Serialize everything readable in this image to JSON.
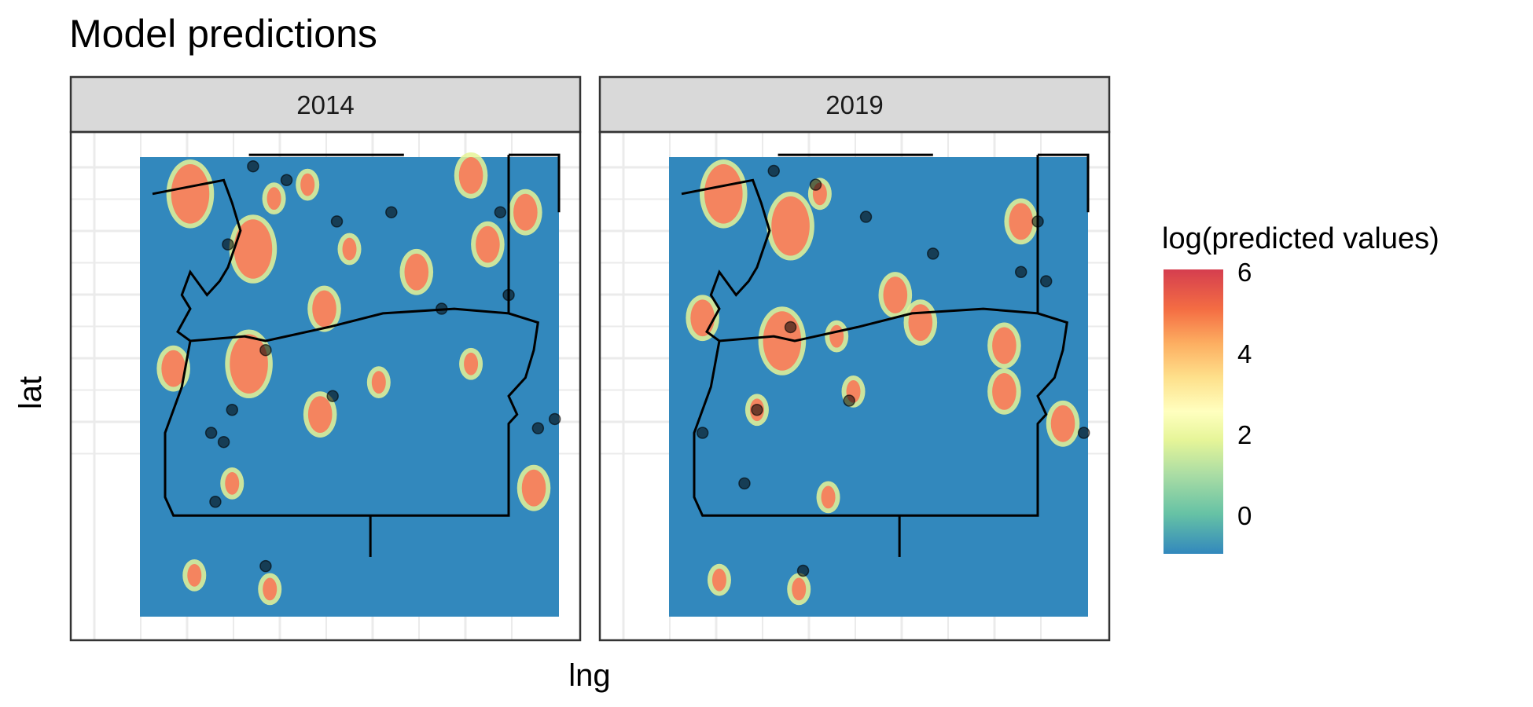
{
  "chart_data": {
    "type": "heatmap",
    "title": "Model predictions",
    "xlabel": "lng",
    "ylabel": "lat",
    "facets": [
      "2014",
      "2019"
    ],
    "legend": {
      "title": "log(predicted values)",
      "ticks": [
        "6",
        "4",
        "2",
        "0"
      ],
      "range": [
        -1,
        6.2
      ],
      "palette": [
        "#2E7FB8",
        "#66C2A5",
        "#ABDDA4",
        "#E6F598",
        "#FFFFBF",
        "#FEE08B",
        "#FDAE61",
        "#F46D43",
        "#D53E4F"
      ],
      "background_color": "#3288BD",
      "hotspot_color": "#F4845F"
    },
    "hotspots": {
      "2014": [
        {
          "x": 0.12,
          "y": 0.08,
          "size": "large"
        },
        {
          "x": 0.32,
          "y": 0.09,
          "size": "small"
        },
        {
          "x": 0.4,
          "y": 0.06,
          "size": "small"
        },
        {
          "x": 0.79,
          "y": 0.04,
          "size": "medium"
        },
        {
          "x": 0.92,
          "y": 0.12,
          "size": "medium"
        },
        {
          "x": 0.27,
          "y": 0.2,
          "size": "large"
        },
        {
          "x": 0.5,
          "y": 0.2,
          "size": "small"
        },
        {
          "x": 0.66,
          "y": 0.25,
          "size": "medium"
        },
        {
          "x": 0.83,
          "y": 0.19,
          "size": "medium"
        },
        {
          "x": 0.26,
          "y": 0.45,
          "size": "large"
        },
        {
          "x": 0.08,
          "y": 0.46,
          "size": "medium"
        },
        {
          "x": 0.44,
          "y": 0.33,
          "size": "medium"
        },
        {
          "x": 0.57,
          "y": 0.49,
          "size": "small"
        },
        {
          "x": 0.43,
          "y": 0.56,
          "size": "medium"
        },
        {
          "x": 0.79,
          "y": 0.45,
          "size": "small"
        },
        {
          "x": 0.94,
          "y": 0.72,
          "size": "medium"
        },
        {
          "x": 0.22,
          "y": 0.71,
          "size": "small"
        },
        {
          "x": 0.13,
          "y": 0.91,
          "size": "small"
        },
        {
          "x": 0.31,
          "y": 0.94,
          "size": "small"
        }
      ],
      "2019": [
        {
          "x": 0.13,
          "y": 0.08,
          "size": "large"
        },
        {
          "x": 0.29,
          "y": 0.15,
          "size": "large"
        },
        {
          "x": 0.36,
          "y": 0.08,
          "size": "small"
        },
        {
          "x": 0.84,
          "y": 0.14,
          "size": "medium"
        },
        {
          "x": 0.27,
          "y": 0.4,
          "size": "large"
        },
        {
          "x": 0.54,
          "y": 0.3,
          "size": "medium"
        },
        {
          "x": 0.4,
          "y": 0.39,
          "size": "small"
        },
        {
          "x": 0.6,
          "y": 0.36,
          "size": "medium"
        },
        {
          "x": 0.8,
          "y": 0.41,
          "size": "medium"
        },
        {
          "x": 0.08,
          "y": 0.35,
          "size": "medium"
        },
        {
          "x": 0.21,
          "y": 0.55,
          "size": "small"
        },
        {
          "x": 0.44,
          "y": 0.51,
          "size": "small"
        },
        {
          "x": 0.8,
          "y": 0.51,
          "size": "medium"
        },
        {
          "x": 0.94,
          "y": 0.58,
          "size": "medium"
        },
        {
          "x": 0.38,
          "y": 0.74,
          "size": "small"
        },
        {
          "x": 0.12,
          "y": 0.92,
          "size": "small"
        },
        {
          "x": 0.31,
          "y": 0.94,
          "size": "small"
        }
      ]
    },
    "points": {
      "2014": [
        [
          0.27,
          0.02
        ],
        [
          0.35,
          0.05
        ],
        [
          0.47,
          0.14
        ],
        [
          0.86,
          0.12
        ],
        [
          0.21,
          0.19
        ],
        [
          0.6,
          0.12
        ],
        [
          0.72,
          0.33
        ],
        [
          0.3,
          0.42
        ],
        [
          0.46,
          0.52
        ],
        [
          0.22,
          0.55
        ],
        [
          0.88,
          0.3
        ],
        [
          0.95,
          0.59
        ],
        [
          0.99,
          0.57
        ],
        [
          0.17,
          0.6
        ],
        [
          0.2,
          0.62
        ],
        [
          0.18,
          0.75
        ],
        [
          0.3,
          0.89
        ]
      ],
      "2019": [
        [
          0.25,
          0.03
        ],
        [
          0.35,
          0.06
        ],
        [
          0.47,
          0.13
        ],
        [
          0.88,
          0.14
        ],
        [
          0.63,
          0.21
        ],
        [
          0.84,
          0.25
        ],
        [
          0.9,
          0.27
        ],
        [
          0.29,
          0.37
        ],
        [
          0.43,
          0.53
        ],
        [
          0.21,
          0.55
        ],
        [
          0.08,
          0.6
        ],
        [
          0.99,
          0.6
        ],
        [
          0.18,
          0.71
        ],
        [
          0.32,
          0.9
        ]
      ]
    }
  }
}
